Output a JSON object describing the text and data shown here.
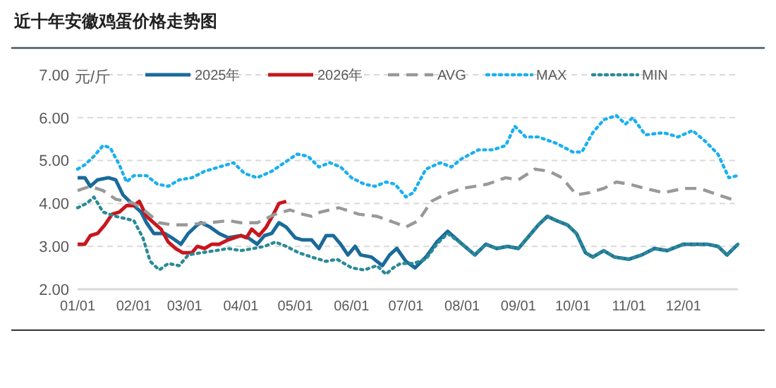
{
  "chart_data": {
    "type": "line",
    "title": "近十年安徽鸡蛋价格走势图",
    "ylabel": "元/斤",
    "xlim": [
      "--01-01",
      "--12-31"
    ],
    "ylim": [
      2,
      7
    ],
    "yticks": [
      {
        "value": 2,
        "label": "2.00"
      },
      {
        "value": 3,
        "label": "3.00"
      },
      {
        "value": 4,
        "label": "4.00"
      },
      {
        "value": 5,
        "label": "5.00"
      },
      {
        "value": 6,
        "label": "6.00"
      },
      {
        "value": 7,
        "label": "7.00"
      }
    ],
    "xticks": [
      {
        "value": "--01-01",
        "label": "01/01"
      },
      {
        "value": "--02-01",
        "label": "02/01"
      },
      {
        "value": "--03-01",
        "label": "03/01"
      },
      {
        "value": "--04-01",
        "label": "04/01"
      },
      {
        "value": "--05-01",
        "label": "05/01"
      },
      {
        "value": "--06-01",
        "label": "06/01"
      },
      {
        "value": "--07-01",
        "label": "07/01"
      },
      {
        "value": "--08-01",
        "label": "08/01"
      },
      {
        "value": "--09-01",
        "label": "09/01"
      },
      {
        "value": "--10-01",
        "label": "10/01"
      },
      {
        "value": "--11-01",
        "label": "11/01"
      },
      {
        "value": "--12-01",
        "label": "12/01"
      }
    ],
    "grid": "y",
    "legend": "top",
    "series": [
      {
        "name": "2025年",
        "color": "#1a6a9a",
        "line_style": "solid",
        "x": [
          "--01-01",
          "--01-05",
          "--01-08",
          "--01-12",
          "--01-18",
          "--01-22",
          "--01-26",
          "--02-01",
          "--02-05",
          "--02-08",
          "--02-12",
          "--02-18",
          "--02-22",
          "--02-27",
          "--03-03",
          "--03-08",
          "--03-10",
          "--03-15",
          "--03-20",
          "--03-25",
          "--04-01",
          "--04-05",
          "--04-10",
          "--04-14",
          "--04-18",
          "--04-22",
          "--04-26",
          "--05-01",
          "--05-05",
          "--05-10",
          "--05-14",
          "--05-18",
          "--05-22",
          "--05-26",
          "--05-30",
          "--06-03",
          "--06-06",
          "--06-12",
          "--06-18",
          "--06-22",
          "--06-26",
          "--07-01",
          "--07-06",
          "--07-12",
          "--07-18",
          "--07-24",
          "--08-01",
          "--08-08",
          "--08-14",
          "--08-20",
          "--08-26",
          "--09-01",
          "--09-06",
          "--09-12",
          "--09-17",
          "--09-22",
          "--09-28",
          "--10-03",
          "--10-08",
          "--10-12",
          "--10-18",
          "--10-24",
          "--11-01",
          "--11-08",
          "--11-15",
          "--11-22",
          "--12-01",
          "--12-07",
          "--12-14",
          "--12-20",
          "--12-25",
          "--12-31"
        ],
        "values": [
          4.6,
          4.6,
          4.4,
          4.55,
          4.6,
          4.55,
          4.2,
          3.95,
          3.8,
          3.55,
          3.3,
          3.3,
          3.2,
          3.05,
          3.3,
          3.5,
          3.55,
          3.45,
          3.3,
          3.2,
          3.25,
          3.2,
          3.05,
          3.25,
          3.3,
          3.55,
          3.45,
          3.2,
          3.15,
          3.15,
          2.95,
          3.25,
          3.25,
          3.05,
          2.8,
          3.0,
          2.8,
          2.75,
          2.55,
          2.8,
          2.95,
          2.65,
          2.5,
          2.75,
          3.1,
          3.35,
          3.05,
          2.8,
          3.05,
          2.95,
          3.0,
          2.95,
          3.2,
          3.5,
          3.7,
          3.6,
          3.5,
          3.3,
          2.85,
          2.75,
          2.9,
          2.75,
          2.7,
          2.8,
          2.95,
          2.9,
          3.05,
          3.05,
          3.05,
          3.0,
          2.8,
          3.05
        ]
      },
      {
        "name": "2026年",
        "color": "#c8161d",
        "line_style": "solid",
        "x": [
          "--01-01",
          "--01-05",
          "--01-08",
          "--01-12",
          "--01-16",
          "--01-20",
          "--01-24",
          "--01-28",
          "--02-01",
          "--02-04",
          "--02-08",
          "--02-12",
          "--02-16",
          "--02-20",
          "--02-24",
          "--02-28",
          "--03-05",
          "--03-08",
          "--03-12",
          "--03-16",
          "--03-20",
          "--03-25",
          "--04-01",
          "--04-04",
          "--04-07",
          "--04-11",
          "--04-15",
          "--04-19",
          "--04-22",
          "--04-26"
        ],
        "values": [
          3.05,
          3.05,
          3.25,
          3.3,
          3.5,
          3.75,
          3.8,
          3.95,
          3.95,
          4.05,
          3.7,
          3.55,
          3.4,
          3.1,
          2.95,
          2.85,
          2.85,
          3.0,
          2.95,
          3.05,
          3.05,
          3.15,
          3.25,
          3.2,
          3.4,
          3.25,
          3.45,
          3.75,
          4.0,
          4.05
        ]
      },
      {
        "name": "AVG",
        "color": "#999999",
        "line_style": "dashed",
        "x": [
          "--01-01",
          "--01-08",
          "--01-15",
          "--01-22",
          "--02-01",
          "--02-08",
          "--02-15",
          "--02-22",
          "--03-01",
          "--03-15",
          "--03-25",
          "--04-01",
          "--04-10",
          "--04-20",
          "--04-28",
          "--05-05",
          "--05-10",
          "--05-15",
          "--05-25",
          "--06-05",
          "--06-15",
          "--06-25",
          "--07-01",
          "--07-08",
          "--07-15",
          "--07-22",
          "--08-01",
          "--08-08",
          "--08-15",
          "--08-25",
          "--09-01",
          "--09-10",
          "--09-18",
          "--09-25",
          "--10-03",
          "--10-10",
          "--10-18",
          "--10-25",
          "--11-01",
          "--11-10",
          "--11-20",
          "--12-01",
          "--12-10",
          "--12-20",
          "--12-31"
        ],
        "values": [
          4.3,
          4.4,
          4.3,
          4.1,
          4.0,
          3.8,
          3.55,
          3.5,
          3.5,
          3.55,
          3.6,
          3.55,
          3.55,
          3.75,
          3.85,
          3.75,
          3.7,
          3.8,
          3.9,
          3.75,
          3.7,
          3.55,
          3.45,
          3.6,
          4.05,
          4.2,
          4.35,
          4.4,
          4.45,
          4.6,
          4.55,
          4.8,
          4.75,
          4.6,
          4.2,
          4.25,
          4.35,
          4.5,
          4.45,
          4.35,
          4.25,
          4.35,
          4.35,
          4.2,
          4.05
        ]
      },
      {
        "name": "MAX",
        "color": "#1ab0f0",
        "line_style": "dotted",
        "x": [
          "--01-01",
          "--01-05",
          "--01-10",
          "--01-15",
          "--01-19",
          "--01-24",
          "--01-28",
          "--02-01",
          "--02-08",
          "--02-14",
          "--02-20",
          "--02-26",
          "--03-05",
          "--03-12",
          "--03-20",
          "--03-28",
          "--04-03",
          "--04-10",
          "--04-18",
          "--04-25",
          "--05-02",
          "--05-08",
          "--05-14",
          "--05-20",
          "--05-26",
          "--06-01",
          "--06-08",
          "--06-14",
          "--06-20",
          "--06-25",
          "--07-01",
          "--07-05",
          "--07-12",
          "--07-20",
          "--07-26",
          "--08-01",
          "--08-10",
          "--08-18",
          "--08-25",
          "--08-30",
          "--09-05",
          "--09-12",
          "--09-22",
          "--10-01",
          "--10-06",
          "--10-12",
          "--10-18",
          "--10-25",
          "--10-30",
          "--11-03",
          "--11-10",
          "--11-20",
          "--11-28",
          "--12-06",
          "--12-13",
          "--12-20",
          "--12-26",
          "--12-31"
        ],
        "values": [
          4.8,
          4.9,
          5.1,
          5.35,
          5.3,
          4.9,
          4.5,
          4.65,
          4.65,
          4.45,
          4.4,
          4.55,
          4.6,
          4.75,
          4.85,
          4.95,
          4.7,
          4.6,
          4.75,
          4.95,
          5.15,
          5.1,
          4.85,
          4.95,
          4.85,
          4.6,
          4.45,
          4.4,
          4.5,
          4.45,
          4.15,
          4.25,
          4.8,
          4.95,
          4.85,
          5.05,
          5.25,
          5.25,
          5.35,
          5.8,
          5.55,
          5.55,
          5.4,
          5.2,
          5.2,
          5.65,
          5.95,
          6.05,
          5.85,
          6.0,
          5.6,
          5.65,
          5.55,
          5.7,
          5.45,
          5.15,
          4.6,
          4.65
        ]
      },
      {
        "name": "MIN",
        "color": "#2a8a96",
        "line_style": "dotted",
        "x": [
          "--01-01",
          "--01-06",
          "--01-10",
          "--01-15",
          "--01-22",
          "--02-01",
          "--02-06",
          "--02-10",
          "--02-15",
          "--02-20",
          "--02-26",
          "--03-03",
          "--03-10",
          "--03-18",
          "--03-25",
          "--04-01",
          "--04-08",
          "--04-14",
          "--04-20",
          "--04-26",
          "--05-03",
          "--05-10",
          "--05-18",
          "--05-24",
          "--06-01",
          "--06-08",
          "--06-15",
          "--06-20",
          "--06-24",
          "--06-28",
          "--07-05",
          "--07-12",
          "--07-18",
          "--07-24",
          "--08-01",
          "--08-08",
          "--08-14",
          "--08-20",
          "--08-26",
          "--09-01",
          "--09-06",
          "--09-12",
          "--09-17",
          "--09-22",
          "--09-28",
          "--10-03",
          "--10-08",
          "--10-12",
          "--10-18",
          "--10-24",
          "--11-01",
          "--11-08",
          "--11-15",
          "--11-22",
          "--12-01",
          "--12-07",
          "--12-14",
          "--12-20",
          "--12-25",
          "--12-31"
        ],
        "values": [
          3.9,
          4.0,
          4.15,
          3.8,
          3.7,
          3.6,
          3.2,
          2.65,
          2.45,
          2.6,
          2.55,
          2.8,
          2.85,
          2.9,
          2.95,
          2.9,
          2.95,
          3.0,
          3.1,
          3.0,
          2.85,
          2.75,
          2.65,
          2.7,
          2.5,
          2.45,
          2.55,
          2.35,
          2.5,
          2.6,
          2.6,
          2.7,
          3.05,
          3.3,
          3.05,
          2.8,
          3.05,
          2.95,
          3.0,
          2.95,
          3.2,
          3.5,
          3.7,
          3.6,
          3.5,
          3.3,
          2.85,
          2.75,
          2.9,
          2.75,
          2.7,
          2.8,
          2.95,
          2.9,
          3.05,
          3.05,
          3.05,
          3.0,
          2.8,
          3.05
        ]
      }
    ]
  }
}
